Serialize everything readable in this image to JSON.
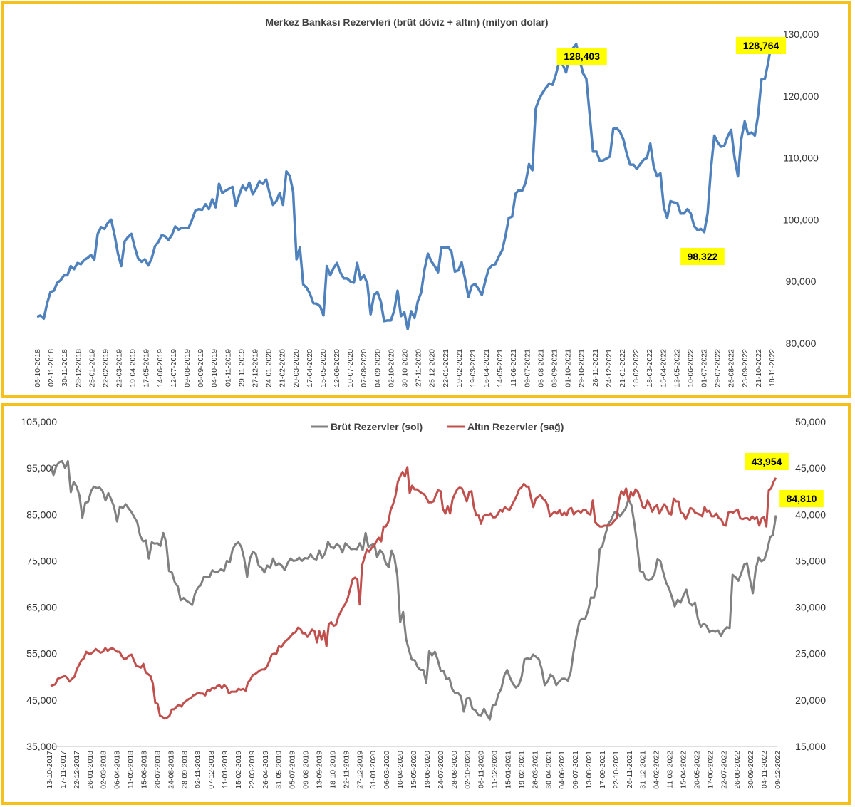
{
  "chart_data": [
    {
      "type": "line",
      "title": "Merkez Bankası Rezervleri (brüt döviz + altın) (milyon dolar)",
      "y_axis_position": "right",
      "ylim": [
        80000,
        130000
      ],
      "yticks": [
        80000,
        90000,
        100000,
        110000,
        120000,
        130000
      ],
      "ytick_labels": [
        "80,000",
        "90,000",
        "100,000",
        "110,000",
        "120,000",
        "130,000"
      ],
      "xtick_labels": [
        "05-10-2018",
        "02-11-2018",
        "30-11-2018",
        "28-12-2018",
        "25-01-2019",
        "22-02-2019",
        "22-03-2019",
        "19-04-2019",
        "17-05-2019",
        "14-06-2019",
        "12-07-2019",
        "09-08-2019",
        "06-09-2019",
        "04-10-2019",
        "01-11-2019",
        "29-11-2019",
        "27-12-2019",
        "24-01-2020",
        "21-02-2020",
        "20-03-2020",
        "17-04-2020",
        "15-05-2020",
        "12-06-2020",
        "10-07-2020",
        "07-08-2020",
        "04-09-2020",
        "02-10-2020",
        "30-10-2020",
        "27-11-2020",
        "25-12-2020",
        "22-01-2021",
        "19-02-2021",
        "19-03-2021",
        "16-04-2021",
        "14-05-2021",
        "11-06-2021",
        "09-07-2021",
        "06-08-2021",
        "03-09-2021",
        "01-10-2021",
        "29-10-2021",
        "26-11-2021",
        "24-12-2021",
        "21-01-2022",
        "18-02-2022",
        "18-03-2022",
        "15-04-2022",
        "13-05-2022",
        "10-06-2022",
        "01-07-2022",
        "29-07-2022",
        "26-08-2022",
        "23-09-2022",
        "21-10-2022",
        "18-11-2022"
      ],
      "grid": false,
      "series": [
        {
          "name": "",
          "color": "#4f81bd",
          "values": [
            84300,
            84500,
            84000,
            86500,
            88300,
            88500,
            89800,
            90200,
            91000,
            91000,
            92500,
            92000,
            93000,
            92800,
            93500,
            93800,
            94300,
            93500,
            97700,
            98800,
            98500,
            99500,
            100000,
            97500,
            94500,
            92500,
            96500,
            97200,
            97700,
            95500,
            93700,
            93200,
            93600,
            92600,
            93700,
            95700,
            96400,
            97500,
            97300,
            96700,
            97500,
            98900,
            98400,
            98700,
            98700,
            98700,
            100000,
            101500,
            101700,
            101600,
            102500,
            101700,
            103300,
            102000,
            105800,
            104300,
            104700,
            105000,
            105300,
            102200,
            104000,
            105500,
            104800,
            106000,
            104100,
            105000,
            106200,
            105800,
            106500,
            104300,
            102400,
            103000,
            104300,
            102400,
            107800,
            107100,
            104500,
            93600,
            95500,
            89500,
            89000,
            88000,
            86500,
            86400,
            86000,
            84500,
            92500,
            91000,
            92200,
            93000,
            91500,
            90500,
            90500,
            90000,
            89800,
            93000,
            90300,
            91000,
            89700,
            84700,
            87800,
            88300,
            86800,
            83600,
            83700,
            83700,
            85300,
            88500,
            84400,
            85000,
            82300,
            85200,
            84100,
            86800,
            88200,
            92000,
            94500,
            93300,
            92500,
            91500,
            95500,
            95500,
            95600,
            94800,
            91600,
            91800,
            93100,
            90500,
            87500,
            89300,
            89600,
            88800,
            87800,
            90000,
            92000,
            92600,
            92800,
            94000,
            95000,
            97300,
            100300,
            100500,
            104200,
            104800,
            104700,
            106000,
            109000,
            108000,
            118000,
            119500,
            120500,
            121300,
            122000,
            121800,
            123500,
            125800,
            125100,
            123800,
            126400,
            127700,
            128403,
            126000,
            123700,
            122800,
            117000,
            111000,
            111000,
            109500,
            109600,
            109900,
            110200,
            114700,
            114800,
            114200,
            113000,
            110700,
            108900,
            108900,
            108200,
            109000,
            109700,
            110000,
            112300,
            108600,
            107000,
            107500,
            102000,
            100300,
            103000,
            102800,
            102700,
            101000,
            101000,
            101700,
            101000,
            99000,
            98322,
            98500,
            98000,
            101000,
            108300,
            113600,
            112500,
            111800,
            112000,
            113500,
            114500,
            110000,
            107000,
            113000,
            115900,
            113800,
            114100,
            113600,
            117000,
            122700,
            122800,
            125500,
            128764
          ]
        }
      ],
      "annotations": [
        {
          "label": "128,403",
          "x": "15-11-2021",
          "y": 128403
        },
        {
          "label": "98,322",
          "x": "15-07-2022",
          "y": 98322
        },
        {
          "label": "128,764",
          "x": "09-12-2022",
          "y": 128764
        }
      ]
    },
    {
      "type": "line",
      "title": "",
      "legend": {
        "position": "top-center",
        "entries": [
          "Brüt Rezervler (sol)",
          "Altın Rezervler (sağ)"
        ]
      },
      "ylim_left": [
        35000,
        105000
      ],
      "yticks_left": [
        "35,000",
        "45,000",
        "55,000",
        "65,000",
        "75,000",
        "85,000",
        "95,000",
        "105,000"
      ],
      "ylim_right": [
        15000,
        50000
      ],
      "yticks_right": [
        "15,000",
        "20,000",
        "25,000",
        "30,000",
        "35,000",
        "40,000",
        "45,000",
        "50,000"
      ],
      "xtick_labels": [
        "13-10-2017",
        "17-11-2017",
        "22-12-2017",
        "26-01-2018",
        "02-03-2018",
        "06-04-2018",
        "11-05-2018",
        "15-06-2018",
        "20-07-2018",
        "24-08-2018",
        "28-09-2018",
        "02-11-2018",
        "07-12-2018",
        "11-01-2019",
        "15-02-2019",
        "22-03-2019",
        "26-04-2019",
        "31-05-2019",
        "05-07-2019",
        "09-08-2019",
        "13-09-2019",
        "18-10-2019",
        "22-11-2019",
        "27-12-2019",
        "31-01-2020",
        "06-03-2020",
        "10-04-2020",
        "15-05-2020",
        "19-06-2020",
        "24-07-2020",
        "28-08-2020",
        "02-10-2020",
        "06-11-2020",
        "11-12-2020",
        "15-01-2021",
        "19-02-2021",
        "26-03-2021",
        "30-04-2021",
        "04-06-2021",
        "09-07-2021",
        "13-08-2021",
        "17-09-2021",
        "22-10-2021",
        "26-11-2021",
        "31-12-2021",
        "04-02-2022",
        "11-03-2022",
        "15-04-2022",
        "20-05-2022",
        "17-06-2022",
        "22-07-2022",
        "26-08-2022",
        "30-09-2022",
        "04-11-2022",
        "09-12-2022"
      ],
      "grid": false,
      "series": [
        {
          "name": "Brüt Rezervler (sol)",
          "axis": "left",
          "color": "#808080",
          "values": [
            95500,
            93500,
            95500,
            96300,
            96500,
            95000,
            96500,
            89800,
            92000,
            91000,
            89000,
            84300,
            87500,
            87700,
            90000,
            91000,
            90700,
            90800,
            90000,
            88000,
            89600,
            88200,
            86600,
            83500,
            86700,
            86400,
            87200,
            86300,
            85500,
            84400,
            83300,
            80400,
            79200,
            79400,
            75500,
            79000,
            78700,
            78800,
            78200,
            81000,
            79000,
            72800,
            72500,
            70300,
            69500,
            66500,
            67000,
            66400,
            66000,
            65500,
            68000,
            69200,
            69800,
            71500,
            71600,
            71500,
            73000,
            72500,
            72700,
            73200,
            72800,
            75000,
            74700,
            77500,
            78600,
            79000,
            78000,
            75500,
            71500,
            75500,
            77000,
            76500,
            74000,
            73500,
            72500,
            74000,
            73500,
            75500,
            74000,
            74500,
            74000,
            73000,
            74500,
            75500,
            75000,
            75100,
            75700,
            75000,
            75600,
            75500,
            76400,
            75500,
            75300,
            77200,
            75600,
            76700,
            79100,
            78000,
            77700,
            78600,
            78200,
            76800,
            78800,
            78200,
            77500,
            77600,
            77500,
            78800,
            77300,
            81000,
            78000,
            78400,
            78700,
            75800,
            77300,
            76600,
            74500,
            73600,
            77200,
            75700,
            71800,
            61800,
            64000,
            58200,
            55800,
            53700,
            53600,
            52100,
            51500,
            51500,
            48700,
            55500,
            54600,
            55400,
            53600,
            51300,
            51300,
            49500,
            49700,
            47300,
            46500,
            46500,
            45800,
            42500,
            45300,
            45400,
            43100,
            42800,
            41800,
            41700,
            43100,
            41800,
            40800,
            43900,
            44000,
            46300,
            47500,
            50300,
            51500,
            49800,
            48500,
            47700,
            48200,
            50000,
            53800,
            54000,
            53800,
            54800,
            54300,
            53800,
            51600,
            48200,
            49000,
            50500,
            50000,
            48200,
            49000,
            49600,
            49600,
            49200,
            51000,
            55500,
            59000,
            62000,
            62600,
            62500,
            64300,
            67100,
            67000,
            69500,
            77400,
            78300,
            80700,
            83000,
            83800,
            85400,
            85600,
            84600,
            85400,
            86300,
            88300,
            87000,
            83100,
            78400,
            72800,
            72600,
            71000,
            70800,
            71100,
            72200,
            75300,
            75000,
            72600,
            70300,
            69100,
            67200,
            65200,
            66600,
            66000,
            67500,
            68800,
            66000,
            65400,
            66000,
            62500,
            60800,
            61500,
            61000,
            59600,
            60000,
            59700,
            60000,
            58800,
            60000,
            60700,
            60500,
            72000,
            71500,
            70700,
            72300,
            74200,
            74500,
            71000,
            68000,
            73200,
            75700,
            74900,
            75300,
            77300,
            80100,
            80600,
            84810
          ]
        },
        {
          "name": "Altın Rezervler (sağ)",
          "axis": "right",
          "color": "#c0504d",
          "values": [
            21500,
            21600,
            21700,
            22300,
            22400,
            22500,
            22600,
            22400,
            22000,
            22300,
            22500,
            23300,
            23800,
            24300,
            24500,
            25200,
            25000,
            25000,
            25200,
            25500,
            25300,
            25100,
            25200,
            25600,
            25300,
            25500,
            25600,
            25400,
            25200,
            25200,
            24700,
            24400,
            24500,
            24800,
            24900,
            24300,
            23700,
            23600,
            23500,
            23900,
            23000,
            22800,
            22600,
            21800,
            19700,
            19600,
            18300,
            18200,
            18000,
            18100,
            18300,
            19000,
            19000,
            19300,
            19500,
            19300,
            19700,
            19900,
            20100,
            20200,
            20500,
            20600,
            20800,
            20700,
            20700,
            20500,
            21100,
            21000,
            21300,
            21200,
            21500,
            21600,
            21300,
            21600,
            21400,
            20700,
            20900,
            20900,
            20900,
            21200,
            21100,
            21200,
            21000,
            21900,
            22200,
            22700,
            22800,
            23000,
            23200,
            23300,
            23300,
            23600,
            24200,
            24900,
            25000,
            25000,
            25800,
            25700,
            26100,
            26400,
            26600,
            26900,
            27200,
            27300,
            27800,
            27700,
            27200,
            27200,
            26800,
            27200,
            27600,
            27400,
            26200,
            27400,
            26500,
            27400,
            25800,
            28200,
            28400,
            28000,
            28100,
            29000,
            29500,
            30000,
            30400,
            31000,
            32000,
            33000,
            33200,
            33000,
            30300,
            34500,
            35400,
            36200,
            36000,
            36400,
            36600,
            37100,
            37500,
            37100,
            38700,
            38700,
            39200,
            40500,
            41100,
            42000,
            43500,
            44100,
            44600,
            44100,
            45100,
            42300,
            43100,
            42700,
            42700,
            42500,
            42300,
            42200,
            41800,
            41300,
            41300,
            41400,
            42100,
            42600,
            42500,
            40600,
            40100,
            40900,
            40100,
            41600,
            42200,
            42700,
            42900,
            42800,
            42100,
            41400,
            42400,
            42500,
            40800,
            39900,
            39900,
            39000,
            39800,
            40000,
            39900,
            40100,
            39700,
            39700,
            40000,
            40500,
            40300,
            40800,
            40600,
            40500,
            41000,
            41500,
            42000,
            42700,
            42900,
            43300,
            43000,
            43000,
            41800,
            40800,
            41700,
            41900,
            42100,
            41700,
            41500,
            41000,
            39800,
            40100,
            40300,
            40100,
            40500,
            39900,
            40200,
            39900,
            40600,
            40700,
            40000,
            40300,
            40400,
            40200,
            40500,
            40500,
            40100,
            40000,
            41500,
            39200,
            38900,
            38700,
            38700,
            38800,
            38800,
            38800,
            39000,
            39300,
            39600,
            41500,
            42500,
            42100,
            42800,
            41500,
            42400,
            42000,
            42700,
            42400,
            41700,
            40800,
            40700,
            41500,
            41000,
            40300,
            40800,
            41000,
            40100,
            40600,
            41100,
            40800,
            40100,
            40000,
            41700,
            41400,
            41400,
            40200,
            40100,
            39500,
            40000,
            40700,
            40600,
            40200,
            40100,
            40000,
            39800,
            40800,
            40300,
            40400,
            39800,
            39800,
            40100,
            39600,
            39500,
            38900,
            38800,
            40200,
            40300,
            40200,
            40400,
            40500,
            39600,
            39500,
            39600,
            39600,
            39400,
            39800,
            39500,
            39700,
            38800,
            39600,
            39700,
            38700,
            42600,
            42800,
            43500,
            43954
          ]
        }
      ],
      "annotations": [
        {
          "label": "43,954",
          "series": "Altın Rezervler (sağ)",
          "x": "09-12-2022",
          "y": 43954
        },
        {
          "label": "84,810",
          "series": "Brüt Rezervler (sol)",
          "x": "09-12-2022",
          "y": 84810
        }
      ]
    }
  ]
}
